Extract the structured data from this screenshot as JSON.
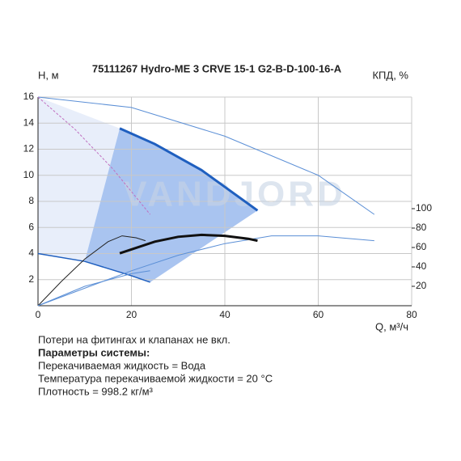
{
  "chart_data": {
    "type": "line",
    "title": "75111267 Hydro-ME 3 CRVE 15-1 G2-B-D-100-16-A",
    "y_label": "H, м",
    "y2_label": "КПД, %",
    "x_label": "Q, м³/ч",
    "watermark": "VANDJORD",
    "xlim": [
      0,
      80
    ],
    "xticks": [
      0,
      20,
      40,
      60,
      80
    ],
    "ylim": [
      0,
      16
    ],
    "yticks": [
      2,
      4,
      6,
      8,
      10,
      12,
      14,
      16
    ],
    "y2lim": [
      0,
      215
    ],
    "y2ticks": [
      20,
      40,
      60,
      80,
      100
    ],
    "grid": true,
    "series": [
      {
        "x": [
          0,
          20,
          40,
          60,
          72
        ],
        "values": [
          16,
          15.2,
          13,
          10,
          7
        ],
        "color": "#5b8fd6",
        "width": 1
      },
      {
        "x": [
          0,
          8,
          16,
          24
        ],
        "values": [
          16,
          13.5,
          10.5,
          7
        ],
        "color": "#c070c0",
        "width": 1,
        "dash": true
      },
      {
        "x": [
          17.5,
          25,
          35,
          47
        ],
        "values": [
          13.6,
          12.4,
          10.4,
          7.3
        ],
        "color": "#1f5fbf",
        "width": 3
      },
      {
        "x": [
          0,
          10,
          20,
          24
        ],
        "values": [
          4,
          3.4,
          2.3,
          1.8
        ],
        "color": "#1f5fbf",
        "width": 1.5
      },
      {
        "x": [
          0,
          5,
          10,
          15,
          18,
          21,
          23
        ],
        "values": [
          0,
          25,
          48,
          66,
          72,
          70,
          67
        ],
        "color": "#222222",
        "width": 1,
        "axis": "y2"
      },
      {
        "x": [
          0,
          10,
          20,
          24
        ],
        "values": [
          0,
          20,
          33,
          36
        ],
        "color": "#5b8fd6",
        "width": 1,
        "axis": "y2"
      },
      {
        "x": [
          0,
          10,
          20,
          30,
          40,
          50,
          60,
          72
        ],
        "values": [
          0,
          18,
          36,
          52,
          64,
          72,
          72,
          67
        ],
        "color": "#5b8fd6",
        "width": 1,
        "axis": "y2"
      },
      {
        "x": [
          17.5,
          25,
          30,
          35,
          40,
          45,
          47
        ],
        "values": [
          54,
          66,
          71,
          73,
          72,
          69,
          67
        ],
        "color": "#111111",
        "width": 3,
        "axis": "y2"
      }
    ]
  },
  "notes": {
    "line1": "Потери на фитингах и клапанах не вкл.",
    "params_title": "Параметры системы:",
    "params": [
      "Перекачиваемая жидкость = Вода",
      "Температура перекачиваемой жидкости = 20 °C",
      "Плотность = 998.2 кг/м³"
    ]
  }
}
